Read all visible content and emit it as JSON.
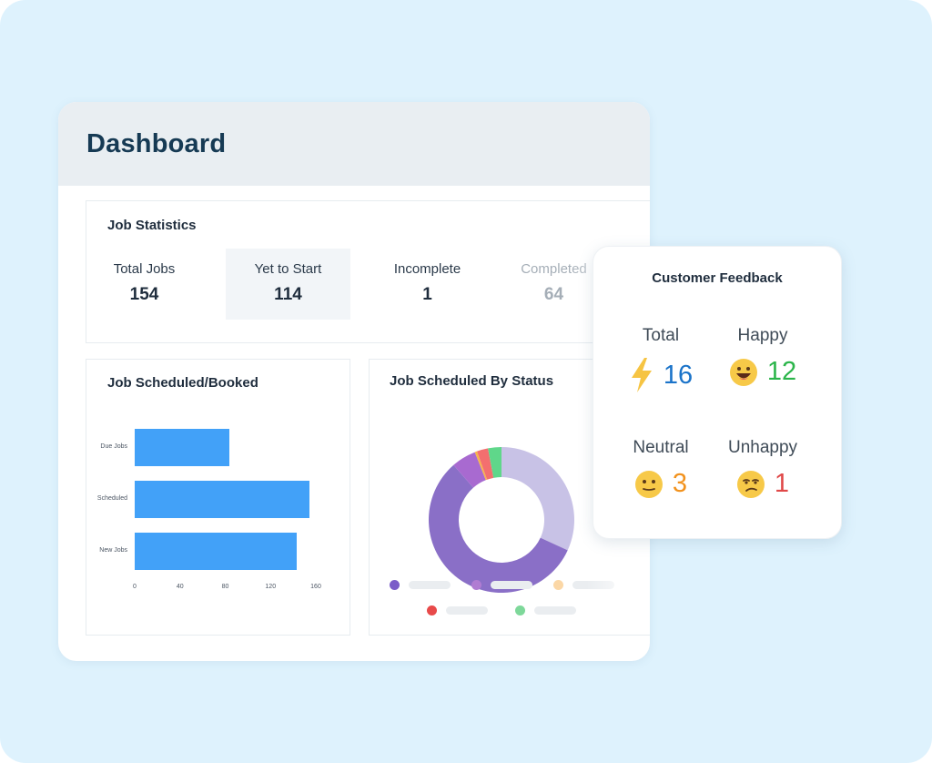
{
  "dashboard": {
    "title": "Dashboard"
  },
  "job_statistics": {
    "title": "Job Statistics",
    "items": [
      {
        "label": "Total Jobs",
        "value": "154"
      },
      {
        "label": "Yet to Start",
        "value": "114"
      },
      {
        "label": "Incomplete",
        "value": "1"
      },
      {
        "label": "Completed",
        "value": "64"
      }
    ]
  },
  "job_scheduled_booked": {
    "title": "Job Scheduled/Booked",
    "chart_data": {
      "type": "bar",
      "orientation": "horizontal",
      "categories": [
        "Due Jobs",
        "Scheduled",
        "New Jobs"
      ],
      "values": [
        84,
        154,
        143
      ],
      "xlim": [
        0,
        160
      ],
      "xticks": [
        "0",
        "40",
        "80",
        "120",
        "160"
      ]
    }
  },
  "job_scheduled_by_status": {
    "title": "Job Scheduled By Status",
    "chart_data": {
      "type": "pie",
      "variant": "donut",
      "slices": [
        {
          "value": 64,
          "color": "#c8c2e6"
        },
        {
          "value": 114,
          "color": "#8a6fc7"
        },
        {
          "value": 11,
          "color": "#a86ad0"
        },
        {
          "value": 1,
          "color": "#f6b54a"
        },
        {
          "value": 5,
          "color": "#f36f6f"
        },
        {
          "value": 6,
          "color": "#5fd78a"
        }
      ]
    },
    "legend_colors": [
      "#7b5cc8",
      "#b07cd2",
      "#fbd7a6",
      "#e84a4a",
      "#7ed89a"
    ]
  },
  "customer_feedback": {
    "title": "Customer Feedback",
    "items": [
      {
        "label": "Total",
        "value": "16",
        "icon": "lightning-icon",
        "color": "#1a73c9"
      },
      {
        "label": "Happy",
        "value": "12",
        "icon": "happy-face-icon",
        "color": "#2bb54a"
      },
      {
        "label": "Neutral",
        "value": "3",
        "icon": "neutral-face-icon",
        "color": "#f2921d"
      },
      {
        "label": "Unhappy",
        "value": "1",
        "icon": "unhappy-face-icon",
        "color": "#e04848"
      }
    ]
  }
}
